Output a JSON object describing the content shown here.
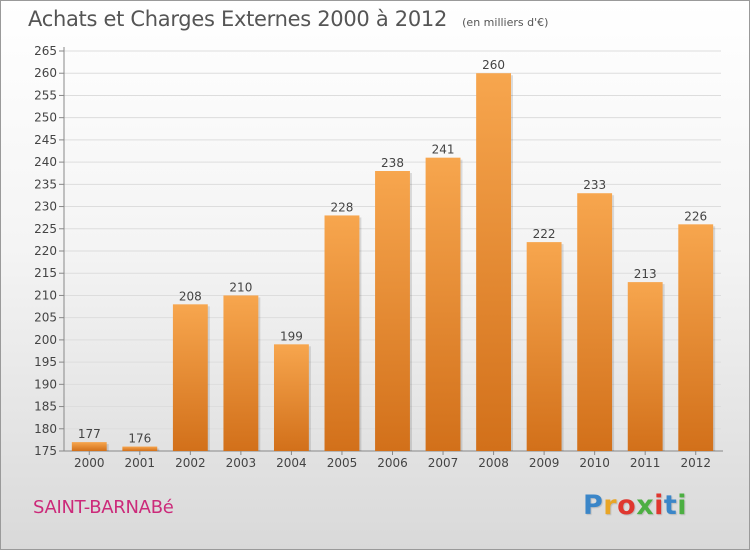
{
  "header": {
    "title": "Achats et Charges Externes 2000 à 2012",
    "unit": "(en milliers d'€)"
  },
  "footer": {
    "commune": "SAINT-BARNABé",
    "logo": "Proxiti"
  },
  "colors": {
    "bar_light": "#f7a64e",
    "bar_dark": "#d2701a",
    "commune_text": "#cc2a7a",
    "logo_letters": [
      "#3b86c8",
      "#e8a526",
      "#e0372f",
      "#4caf42",
      "#e0372f",
      "#3b86c8",
      "#4caf42"
    ]
  },
  "chart_data": {
    "type": "bar",
    "title": "Achats et Charges Externes 2000 à 2012",
    "subtitle": "(en milliers d'€)",
    "categories": [
      "2000",
      "2001",
      "2002",
      "2003",
      "2004",
      "2005",
      "2006",
      "2007",
      "2008",
      "2009",
      "2010",
      "2011",
      "2012"
    ],
    "values": [
      177,
      176,
      208,
      210,
      199,
      228,
      238,
      241,
      260,
      222,
      233,
      213,
      226
    ],
    "data_labels": [
      "177",
      "176",
      "208",
      "210",
      "199",
      "228",
      "238",
      "241",
      "260",
      "222",
      "233",
      "213",
      "226"
    ],
    "ylim": [
      175,
      265
    ],
    "yticks": [
      175,
      180,
      185,
      190,
      195,
      200,
      205,
      210,
      215,
      220,
      225,
      230,
      235,
      240,
      245,
      250,
      255,
      260,
      265
    ],
    "ytick_labels": [
      "175",
      "180",
      "185",
      "190",
      "195",
      "200",
      "205",
      "210",
      "215",
      "220",
      "225",
      "230",
      "235",
      "240",
      "245",
      "250",
      "255",
      "260",
      "265"
    ],
    "xlabel": "",
    "ylabel": "",
    "grid": true
  }
}
